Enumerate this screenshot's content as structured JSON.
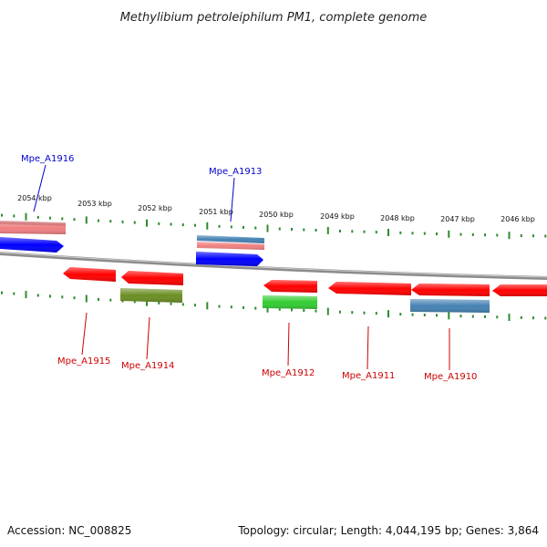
{
  "title": "Methylibium petroleiphilum PM1, complete genome",
  "footer": {
    "accession": "Accession: NC_008825",
    "summary": "Topology: circular; Length: 4,044,195 bp; Genes: 3,864"
  },
  "colors": {
    "genome_line": "#7f7f7f",
    "tick": "#2e8b2e",
    "forward_label": "#0000cc",
    "reverse_label": "#cc0000",
    "red_gene": "#ff0000",
    "blue_gene": "#0000ff",
    "pink_gene": "#f08080",
    "steelblue_gene": "#4682b4",
    "olive_gene": "#6b8e23",
    "green_gene": "#32cd32"
  },
  "chart_data": {
    "type": "genome-map",
    "scale_labels": [
      "2054 kbp",
      "2053 kbp",
      "2052 kbp",
      "2051 kbp",
      "2050 kbp",
      "2049 kbp",
      "2048 kbp",
      "2047 kbp",
      "2046 kbp"
    ],
    "labelled_genes": [
      {
        "name": "Mpe_A1916",
        "strand": "+"
      },
      {
        "name": "Mpe_A1913",
        "strand": "+"
      },
      {
        "name": "Mpe_A1915",
        "strand": "-"
      },
      {
        "name": "Mpe_A1914",
        "strand": "-"
      },
      {
        "name": "Mpe_A1912",
        "strand": "-"
      },
      {
        "name": "Mpe_A1911",
        "strand": "-"
      },
      {
        "name": "Mpe_A1910",
        "strand": "-"
      }
    ]
  }
}
